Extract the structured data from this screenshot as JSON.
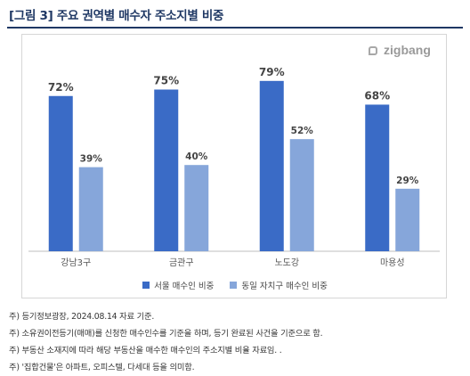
{
  "figure": {
    "title": "[그림 3] 주요 권역별 매수자 주소지별 비중",
    "logo_text": "zigbang"
  },
  "chart_data": {
    "type": "bar",
    "categories": [
      "강남3구",
      "금관구",
      "노도강",
      "마용성"
    ],
    "series": [
      {
        "name": "서울 매수인 비중",
        "values": [
          72,
          75,
          79,
          68
        ],
        "labels": [
          "72%",
          "75%",
          "79%",
          "68%"
        ],
        "color": "#3a6bc6"
      },
      {
        "name": "동일 자치구 매수인 비중",
        "values": [
          39,
          40,
          52,
          29
        ],
        "labels": [
          "39%",
          "40%",
          "52%",
          "29%"
        ],
        "color": "#86a6da"
      }
    ],
    "unit": "%",
    "ylim": [
      0,
      100
    ],
    "grid": false,
    "legend_position": "bottom"
  },
  "notes": [
    "주) 등기정보광장, 2024.08.14 자료 기준.",
    "주) 소유권이전등기(매매)를 신청한 매수인수를 기준을 하며, 등기 완료된 사건을 기준으로 함.",
    "주) 부동산 소재지에 따라 해당 부동산을 매수한 매수인의 주소지별 비율 자료임. .",
    "주) '집합건물'은 아파트, 오피스텔, 다세대 등을 의미함."
  ]
}
